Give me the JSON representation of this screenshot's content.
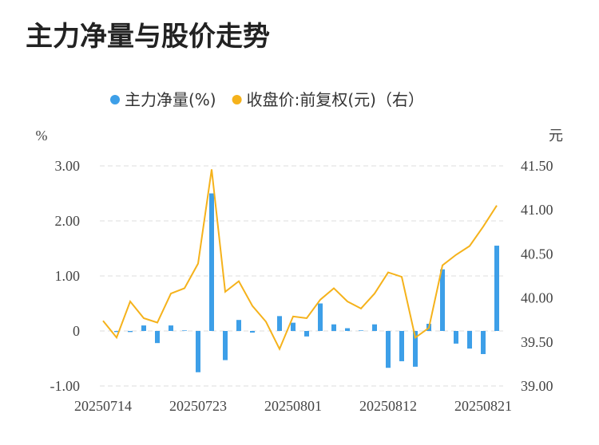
{
  "chart_data": {
    "type": "bar-line",
    "title": "主力净量与股价走势",
    "y_label": "%",
    "y2_label": "元",
    "categories": [
      "20250714",
      null,
      null,
      null,
      null,
      null,
      null,
      "20250723",
      null,
      null,
      null,
      null,
      null,
      null,
      "20250801",
      null,
      null,
      null,
      null,
      null,
      null,
      "20250812",
      null,
      null,
      null,
      null,
      null,
      null,
      "20250821",
      null
    ],
    "series": [
      {
        "name": "主力净量(%)",
        "color": "#3d9fe8",
        "type": "bar",
        "values": [
          0,
          -0.02,
          -0.02,
          0.1,
          -0.22,
          0.1,
          0.01,
          -0.75,
          2.5,
          -0.53,
          0.2,
          -0.03,
          0,
          0.27,
          0.15,
          -0.1,
          0.5,
          0.12,
          0.05,
          0.01,
          0.12,
          -0.67,
          -0.55,
          -0.65,
          0.13,
          1.12,
          -0.23,
          -0.32,
          -0.42,
          1.55
        ]
      },
      {
        "name": "收盘价:前复权(元)（右）",
        "color": "#f5b21b",
        "type": "line",
        "axis": "y2",
        "values": [
          39.74,
          39.55,
          39.96,
          39.77,
          39.72,
          40.05,
          40.11,
          40.39,
          41.46,
          40.07,
          40.19,
          39.91,
          39.73,
          39.42,
          39.79,
          39.77,
          39.98,
          40.11,
          39.96,
          39.88,
          40.05,
          40.29,
          40.24,
          39.55,
          39.66,
          40.37,
          40.49,
          40.59,
          40.81,
          41.05
        ]
      }
    ],
    "ylim": [
      -1,
      3
    ],
    "yticks": [
      {
        "value": -1,
        "label": "-1.00"
      },
      0,
      {
        "value": 1,
        "label": "1.00"
      },
      {
        "value": 2,
        "label": "2.00"
      },
      {
        "value": 3,
        "label": "3.00"
      }
    ],
    "y2lim": [
      39,
      41.5
    ],
    "y2ticks": [
      {
        "value": 39,
        "label": "39.00"
      },
      {
        "value": 39.5,
        "label": "39.50"
      },
      {
        "value": 40,
        "label": "40.00"
      },
      {
        "value": 40.5,
        "label": "40.50"
      },
      {
        "value": 41,
        "label": "41.00"
      },
      {
        "value": 41.5,
        "label": "41.50"
      }
    ],
    "grid": true
  }
}
